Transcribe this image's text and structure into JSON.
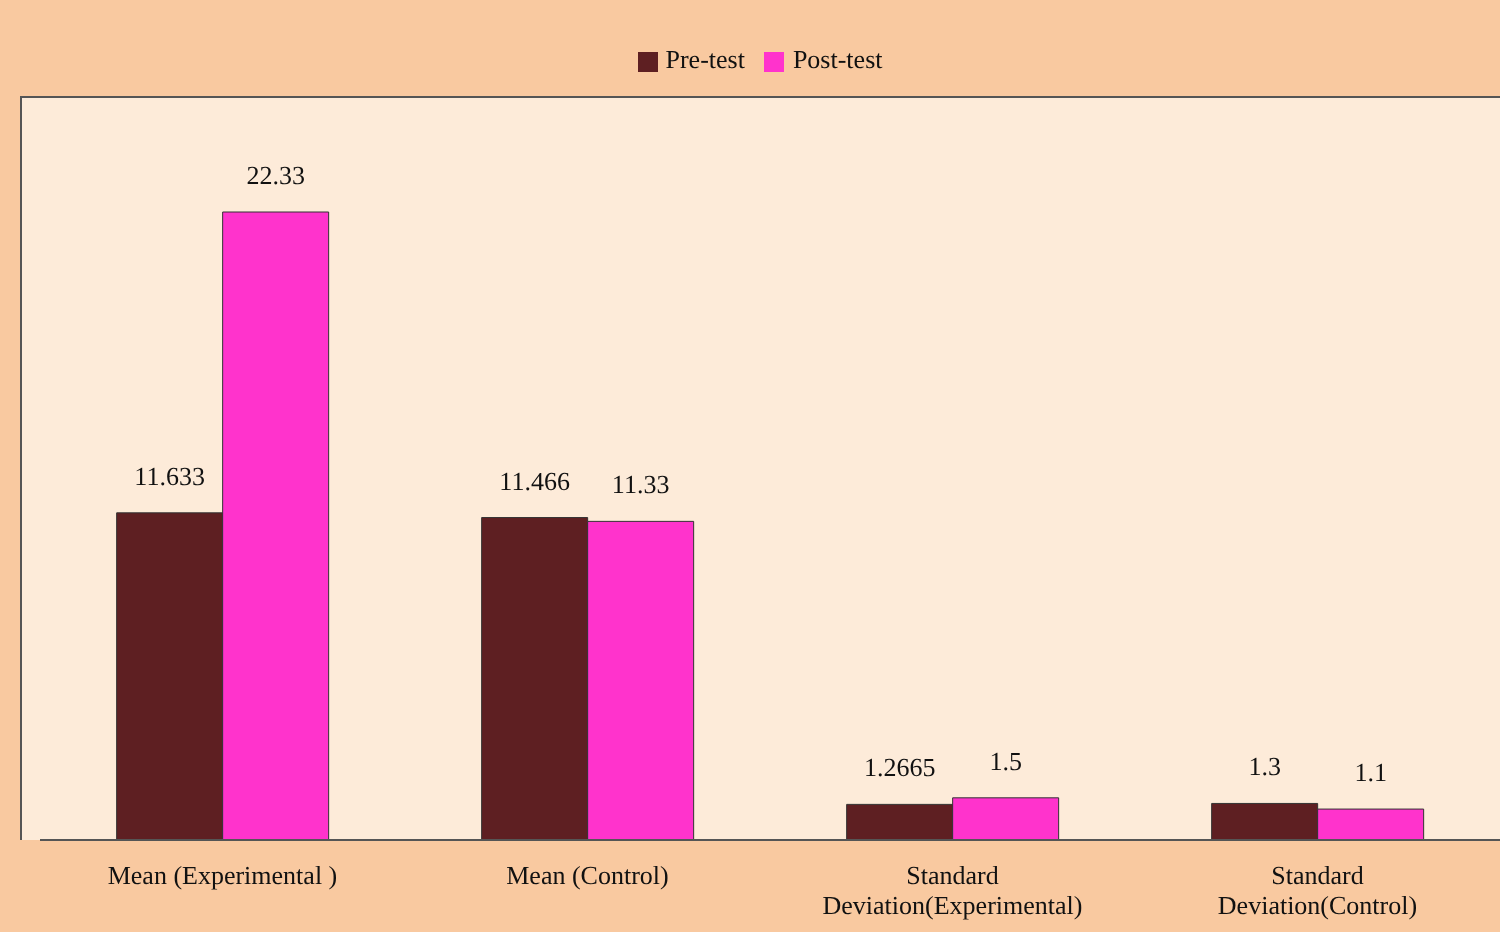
{
  "chart_data": {
    "type": "bar",
    "categories": [
      "Mean (Experimental )",
      "Mean (Control)",
      "Standard Deviation(Experimental)",
      "Standard Deviation(Control)"
    ],
    "series": [
      {
        "name": "Pre-test",
        "color": "#5e1f22",
        "values": [
          11.633,
          11.466,
          1.2665,
          1.3
        ]
      },
      {
        "name": "Post-test",
        "color": "#ff33cc",
        "values": [
          22.33,
          11.33,
          1.5,
          1.1
        ]
      }
    ],
    "data_labels": true,
    "legend": "top"
  }
}
